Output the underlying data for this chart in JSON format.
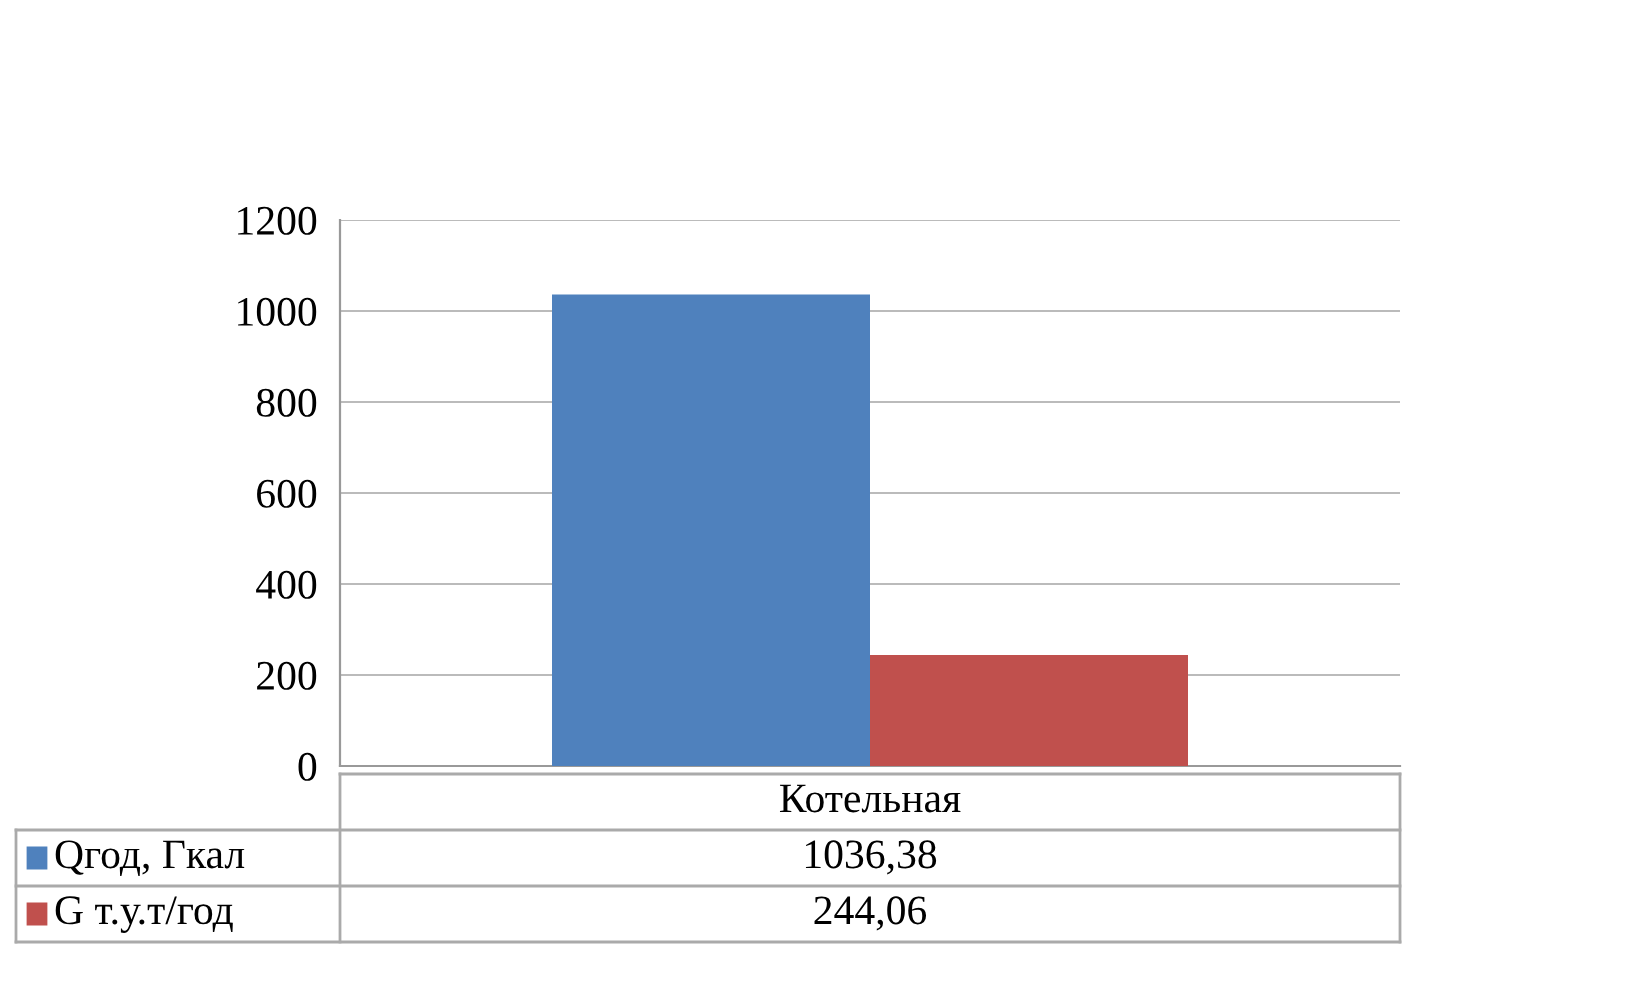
{
  "chart_data": {
    "type": "bar",
    "categories": [
      "Котельная"
    ],
    "series": [
      {
        "name": "Qгод, Гкал",
        "color": "#4f81bd",
        "values": [
          1036.38
        ],
        "value_labels": [
          "1036,38"
        ]
      },
      {
        "name": "G т.у.т/год",
        "color": "#c0504d",
        "values": [
          244.06
        ],
        "value_labels": [
          "244,06"
        ]
      }
    ],
    "ylim": [
      0,
      1200
    ],
    "yticks": [
      0,
      200,
      400,
      600,
      800,
      1000,
      1200
    ],
    "grid": "y",
    "legend": "bottom"
  }
}
